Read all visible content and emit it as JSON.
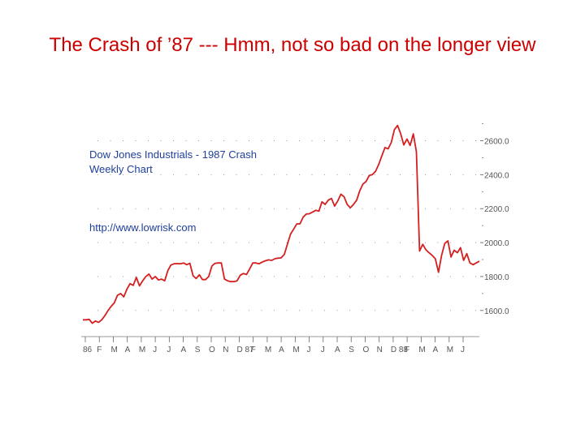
{
  "slide": {
    "title": "The Crash of ’87 --- Hmm, not so bad on the longer view"
  },
  "colors": {
    "title": "#cc0000",
    "line": "#d42020",
    "annotation": "#1f3f9a",
    "grid": "#9a9a9a"
  },
  "chart_data": {
    "type": "line",
    "title": "Dow Jones Industrials - 1987 Crash",
    "subtitle": "Weekly Chart",
    "annotation": "http://www.lowrisk.com",
    "xlabel": "",
    "ylabel": "",
    "ylim": [
      1470,
      2760
    ],
    "grid": true,
    "y_axis_side": "right",
    "y_ticks": [
      {
        "value": 2600,
        "label": "2600.0"
      },
      {
        "value": 2400,
        "label": "2400.0"
      },
      {
        "value": 2200,
        "label": "2200.0"
      },
      {
        "value": 2000,
        "label": "2000.0"
      },
      {
        "value": 1800,
        "label": "1800.0"
      },
      {
        "value": 1600,
        "label": "1600.0"
      }
    ],
    "x_ticks": [
      "86",
      "F",
      "M",
      "A",
      "M",
      "J",
      "J",
      "A",
      "S",
      "O",
      "N",
      "D 87",
      "F",
      "M",
      "A",
      "M",
      "J",
      "J",
      "A",
      "S",
      "O",
      "N",
      "D 88",
      "F",
      "M",
      "A",
      "M",
      "J"
    ],
    "series": [
      {
        "name": "Dow Jones Industrials",
        "x": [
          0,
          1,
          2,
          3,
          4,
          5,
          6,
          7,
          8,
          9,
          10,
          11,
          12,
          13,
          14,
          15,
          16,
          17,
          18,
          19,
          20,
          21,
          22,
          23,
          24,
          25,
          26,
          27,
          28,
          29,
          30,
          31,
          32,
          33,
          34,
          35,
          36,
          37,
          38,
          39,
          40,
          41,
          42,
          43,
          44,
          45,
          46,
          47,
          48,
          49,
          50,
          51,
          52,
          53,
          54,
          55,
          56,
          57,
          58,
          59,
          60,
          61,
          62,
          63,
          64,
          65,
          66,
          67,
          68,
          69,
          70,
          71,
          72,
          73,
          74,
          75,
          76,
          77,
          78,
          79,
          80,
          81,
          82,
          83,
          84,
          85,
          86,
          87,
          88,
          89,
          90,
          91,
          92,
          93,
          94,
          95,
          96,
          97,
          98,
          99,
          100,
          101,
          102,
          103,
          104,
          105,
          106,
          107,
          108,
          109,
          110,
          111,
          112,
          113,
          114,
          115,
          116,
          117,
          118,
          119,
          120,
          121,
          122,
          123,
          124,
          125,
          126
        ],
        "values": [
          1545,
          1545,
          1548,
          1525,
          1538,
          1530,
          1545,
          1570,
          1600,
          1625,
          1645,
          1690,
          1700,
          1680,
          1725,
          1758,
          1748,
          1795,
          1745,
          1775,
          1800,
          1815,
          1785,
          1800,
          1780,
          1785,
          1775,
          1835,
          1868,
          1875,
          1876,
          1875,
          1880,
          1870,
          1878,
          1805,
          1788,
          1810,
          1782,
          1782,
          1800,
          1862,
          1878,
          1880,
          1880,
          1785,
          1775,
          1770,
          1770,
          1775,
          1808,
          1818,
          1812,
          1845,
          1880,
          1880,
          1875,
          1885,
          1893,
          1898,
          1895,
          1905,
          1908,
          1910,
          1930,
          1990,
          2050,
          2080,
          2110,
          2110,
          2150,
          2168,
          2170,
          2180,
          2190,
          2185,
          2240,
          2225,
          2250,
          2260,
          2215,
          2245,
          2285,
          2270,
          2225,
          2205,
          2225,
          2250,
          2305,
          2345,
          2360,
          2395,
          2400,
          2420,
          2460,
          2510,
          2560,
          2552,
          2590,
          2665,
          2690,
          2640,
          2575,
          2610,
          2572,
          2640,
          2535,
          1950,
          1990,
          1958,
          1940,
          1925,
          1905,
          1825,
          1925,
          1995,
          2010,
          1915,
          1955,
          1940,
          1970,
          1895,
          1935,
          1880,
          1870,
          1880,
          1890
        ]
      }
    ]
  }
}
